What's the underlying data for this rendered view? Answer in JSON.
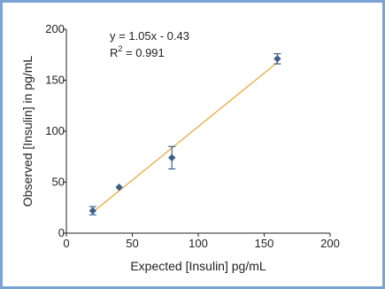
{
  "chart_data": {
    "type": "scatter",
    "xlabel": "Expected [Insulin] pg/mL",
    "ylabel": "Observed [Insulin] in pg/mL",
    "xlim": [
      0,
      200
    ],
    "ylim": [
      0,
      200
    ],
    "x_ticks": [
      "0",
      "50",
      "100",
      "150",
      "200"
    ],
    "y_ticks": [
      "0",
      "50",
      "100",
      "150",
      "200"
    ],
    "grid": false,
    "points": [
      {
        "x": 20,
        "y": 22,
        "err": 4
      },
      {
        "x": 40,
        "y": 45,
        "err": 0
      },
      {
        "x": 80,
        "y": 74,
        "err": 11
      },
      {
        "x": 160,
        "y": 171,
        "err": 5
      }
    ],
    "trendline": {
      "slope": 1.05,
      "intercept": -0.43,
      "x_range": [
        20,
        160
      ]
    },
    "equation_text": "y = 1.05x - 0.43",
    "r2_label": "R",
    "r2_superscript": "2",
    "r2_value_text": " = 0.991",
    "colors": {
      "marker": "#3f5f8a",
      "trendline": "#f0a030",
      "axis": "#222222",
      "border": "#7aa2d2"
    }
  }
}
